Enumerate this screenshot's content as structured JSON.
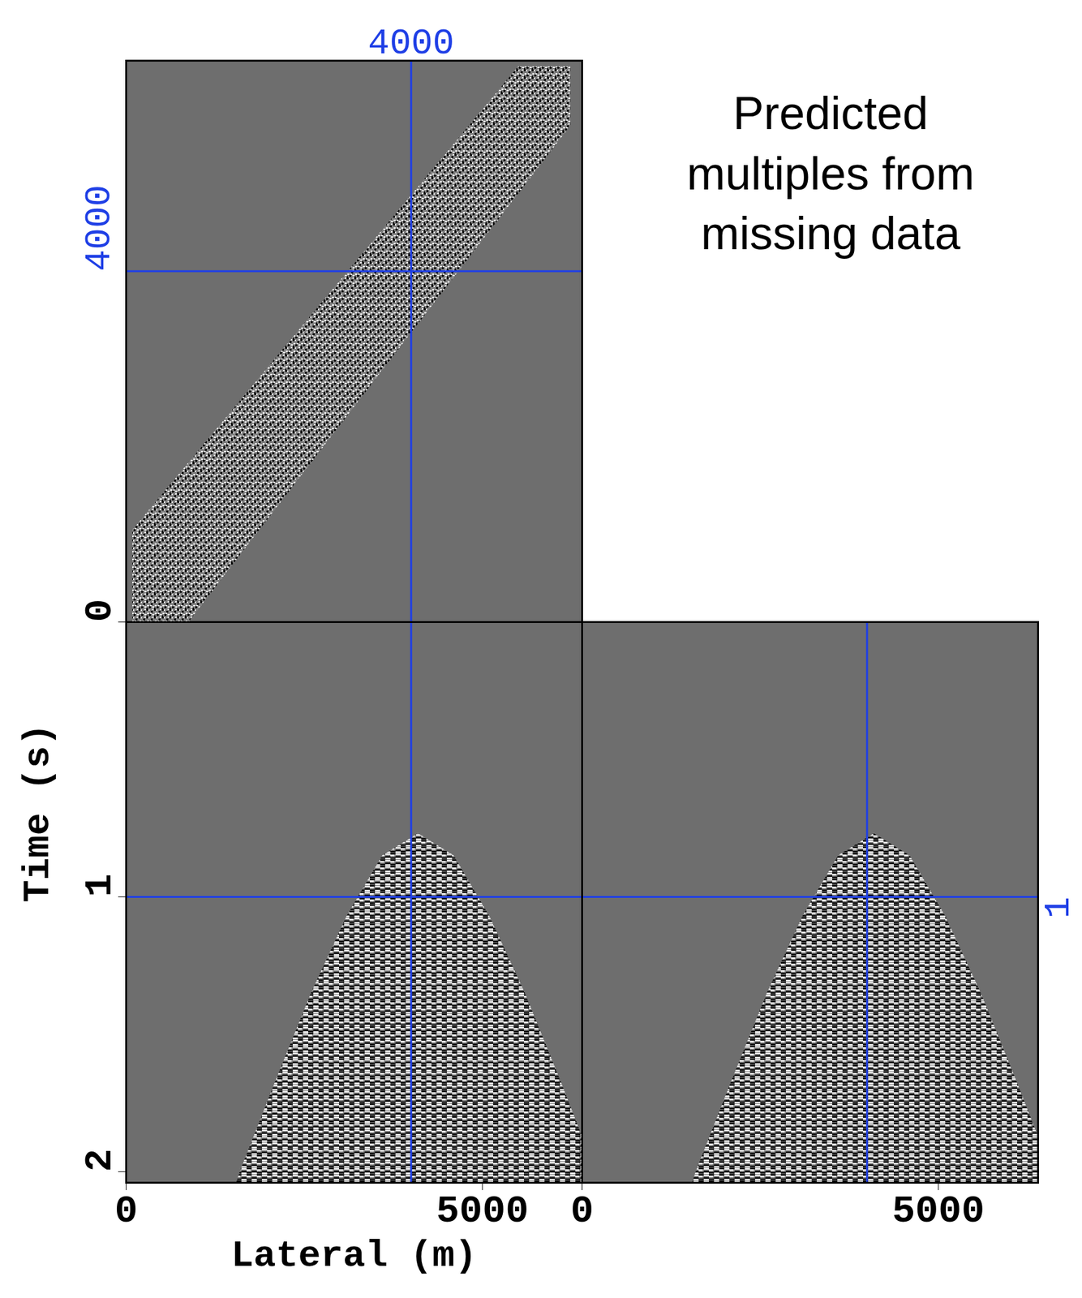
{
  "chart_data": [
    {
      "type": "area",
      "annotation": "Predicted multiples from missing data",
      "xlim": [
        0,
        6400
      ],
      "ylim": [
        0,
        6400
      ],
      "xticks": [],
      "yticks": [],
      "tick_labels": false,
      "band": {
        "x": [
          90,
          880,
          5510,
          6240
        ],
        "lower": [
          0,
          0,
          4885,
          5656
        ],
        "upper": [
          1045,
          1816,
          6334,
          6334
        ]
      },
      "crosshair": {
        "x": 4000,
        "y": 4000,
        "x_label": "4000",
        "y_label": "4000",
        "color": "#1f3fe6"
      }
    },
    {
      "type": "area",
      "xlabel": "Lateral (m)",
      "ylabel": "Time (s)",
      "xlim": [
        0,
        6400
      ],
      "ylim": [
        0,
        2.04
      ],
      "xticks": [
        0,
        5000
      ],
      "yticks": [
        0,
        1,
        2
      ],
      "region": {
        "x": [
          1550,
          1600,
          2100,
          2600,
          3100,
          3600,
          4100,
          4600,
          5100,
          5600,
          6100,
          6400,
          6400
        ],
        "t": [
          2.04,
          2.0,
          1.67,
          1.35,
          1.07,
          0.85,
          0.77,
          0.85,
          1.07,
          1.35,
          1.67,
          1.87,
          2.04
        ]
      },
      "crosshair": {
        "x": 4000,
        "y": 1,
        "color": "#1f3fe6"
      }
    },
    {
      "type": "area",
      "xlim": [
        0,
        6400
      ],
      "ylim": [
        0,
        2.04
      ],
      "xticks": [
        0,
        5000
      ],
      "yticks": [],
      "tick_labels": "x",
      "region": {
        "x": [
          1550,
          1600,
          2100,
          2600,
          3100,
          3600,
          4100,
          4600,
          5100,
          5600,
          6100,
          6400,
          6400
        ],
        "t": [
          2.04,
          2.0,
          1.67,
          1.35,
          1.07,
          0.85,
          0.77,
          0.85,
          1.07,
          1.35,
          1.67,
          1.87,
          2.04
        ]
      },
      "crosshair": {
        "x": 4000,
        "y": 1,
        "y_label": "1",
        "color": "#1f3fe6"
      }
    }
  ]
}
